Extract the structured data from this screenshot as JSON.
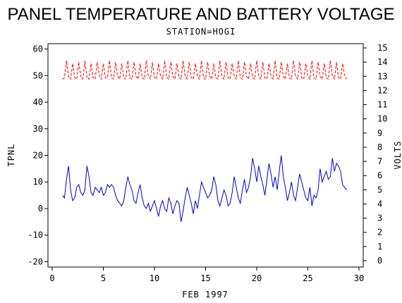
{
  "chart_data": {
    "type": "line",
    "title": "PANEL TEMPERATURE AND BATTERY VOLTAGE",
    "subtitle": "STATION=HOGI",
    "xlabel": "FEB 1997",
    "ylabel_left": "TPNL",
    "ylabel_right": "VOLTS",
    "xlim": [
      0,
      30
    ],
    "ylim_left": [
      -22,
      62
    ],
    "ylim_right": [
      0,
      15
    ],
    "x_ticks": [
      0,
      5,
      10,
      15,
      20,
      25,
      30
    ],
    "y_ticks_left": [
      -20,
      -10,
      0,
      10,
      20,
      30,
      40,
      50,
      60
    ],
    "y_ticks_right": [
      0,
      1,
      2,
      3,
      4,
      5,
      6,
      7,
      8,
      9,
      10,
      11,
      12,
      13,
      14,
      15
    ],
    "grid": false,
    "colors": {
      "temperature": "#0000cc",
      "voltage": "#ff0000",
      "axes": "#000000"
    },
    "series": [
      {
        "axis": "left",
        "style": "solid",
        "x": [
          1.0,
          1.2,
          1.4,
          1.6,
          1.8,
          2.0,
          2.2,
          2.4,
          2.6,
          2.8,
          3.0,
          3.2,
          3.4,
          3.6,
          3.8,
          4.0,
          4.2,
          4.4,
          4.6,
          4.8,
          5.0,
          5.2,
          5.4,
          5.6,
          5.8,
          6.0,
          6.2,
          6.4,
          6.6,
          6.8,
          7.0,
          7.2,
          7.4,
          7.6,
          7.8,
          8.0,
          8.2,
          8.4,
          8.6,
          8.8,
          9.0,
          9.2,
          9.4,
          9.6,
          9.8,
          10.0,
          10.2,
          10.4,
          10.6,
          10.8,
          11.0,
          11.2,
          11.4,
          11.6,
          11.8,
          12.0,
          12.2,
          12.4,
          12.6,
          12.8,
          13.0,
          13.2,
          13.4,
          13.6,
          13.8,
          14.0,
          14.2,
          14.4,
          14.6,
          14.8,
          15.0,
          15.2,
          15.4,
          15.6,
          15.8,
          16.0,
          16.2,
          16.4,
          16.6,
          16.8,
          17.0,
          17.2,
          17.4,
          17.6,
          17.8,
          18.0,
          18.2,
          18.4,
          18.6,
          18.8,
          19.0,
          19.2,
          19.4,
          19.6,
          19.8,
          20.0,
          20.2,
          20.4,
          20.6,
          20.8,
          21.0,
          21.2,
          21.4,
          21.6,
          21.8,
          22.0,
          22.2,
          22.4,
          22.6,
          22.8,
          23.0,
          23.2,
          23.4,
          23.6,
          23.8,
          24.0,
          24.2,
          24.4,
          24.6,
          24.8,
          25.0,
          25.2,
          25.4,
          25.6,
          25.8,
          26.0,
          26.2,
          26.4,
          26.6,
          26.8,
          27.0,
          27.2,
          27.4,
          27.6,
          27.8,
          28.0,
          28.2,
          28.4,
          28.6,
          28.8
        ],
        "y": [
          5,
          4,
          11,
          16,
          7,
          3,
          4,
          8,
          9,
          6,
          5,
          7,
          16,
          12,
          6,
          5,
          8,
          7,
          6,
          8,
          5,
          6,
          9,
          8,
          9,
          8,
          5,
          3,
          2,
          1,
          3,
          8,
          12,
          9,
          7,
          3,
          2,
          6,
          9,
          4,
          1,
          0,
          2,
          -1,
          1,
          3,
          0,
          -3,
          1,
          3,
          0,
          -1,
          4,
          2,
          -2,
          1,
          3,
          2,
          -5,
          -1,
          4,
          8,
          5,
          2,
          -2,
          3,
          0,
          5,
          10,
          8,
          6,
          4,
          5,
          7,
          12,
          9,
          3,
          1,
          4,
          7,
          5,
          1,
          2,
          6,
          12,
          8,
          4,
          2,
          7,
          11,
          6,
          8,
          12,
          19,
          15,
          10,
          16,
          12,
          9,
          5,
          11,
          17,
          13,
          8,
          12,
          7,
          14,
          20,
          12,
          8,
          3,
          6,
          10,
          5,
          3,
          8,
          13,
          10,
          7,
          4,
          3,
          8,
          1,
          5,
          4,
          7,
          15,
          10,
          12,
          14,
          11,
          12,
          19,
          14,
          17,
          16,
          14,
          9,
          8,
          7
        ]
      },
      {
        "axis": "right",
        "style": "dashed",
        "x": [
          1.0,
          1.2,
          1.4,
          1.6,
          1.8,
          2.0,
          2.2,
          2.4,
          2.6,
          2.8,
          3.0,
          3.2,
          3.4,
          3.6,
          3.8,
          4.0,
          4.2,
          4.4,
          4.6,
          4.8,
          5.0,
          5.2,
          5.4,
          5.6,
          5.8,
          6.0,
          6.2,
          6.4,
          6.6,
          6.8,
          7.0,
          7.2,
          7.4,
          7.6,
          7.8,
          8.0,
          8.2,
          8.4,
          8.6,
          8.8,
          9.0,
          9.2,
          9.4,
          9.6,
          9.8,
          10.0,
          10.2,
          10.4,
          10.6,
          10.8,
          11.0,
          11.2,
          11.4,
          11.6,
          11.8,
          12.0,
          12.2,
          12.4,
          12.6,
          12.8,
          13.0,
          13.2,
          13.4,
          13.6,
          13.8,
          14.0,
          14.2,
          14.4,
          14.6,
          14.8,
          15.0,
          15.2,
          15.4,
          15.6,
          15.8,
          16.0,
          16.2,
          16.4,
          16.6,
          16.8,
          17.0,
          17.2,
          17.4,
          17.6,
          17.8,
          18.0,
          18.2,
          18.4,
          18.6,
          18.8,
          19.0,
          19.2,
          19.4,
          19.6,
          19.8,
          20.0,
          20.2,
          20.4,
          20.6,
          20.8,
          21.0,
          21.2,
          21.4,
          21.6,
          21.8,
          22.0,
          22.2,
          22.4,
          22.6,
          22.8,
          23.0,
          23.2,
          23.4,
          23.6,
          23.8,
          24.0,
          24.2,
          24.4,
          24.6,
          24.8,
          25.0,
          25.2,
          25.4,
          25.6,
          25.8,
          26.0,
          26.2,
          26.4,
          26.6,
          26.8,
          27.0,
          27.2,
          27.4,
          27.6,
          27.8,
          28.0,
          28.2,
          28.4,
          28.6,
          28.8
        ],
        "y": [
          12.8,
          12.9,
          14.1,
          13.0,
          12.8,
          13.9,
          12.9,
          12.8,
          14.0,
          13.0,
          12.8,
          14.1,
          12.9,
          12.8,
          13.9,
          12.9,
          12.8,
          14.0,
          13.1,
          12.8,
          13.9,
          12.9,
          12.9,
          14.1,
          12.9,
          12.8,
          14.0,
          13.0,
          12.8,
          13.9,
          12.9,
          12.8,
          14.1,
          12.9,
          12.8,
          14.0,
          13.0,
          12.8,
          13.9,
          12.9,
          12.8,
          14.1,
          13.0,
          12.8,
          14.0,
          12.9,
          12.8,
          13.9,
          13.0,
          12.8,
          14.1,
          12.9,
          12.8,
          14.0,
          13.0,
          12.8,
          13.9,
          12.9,
          12.8,
          14.1,
          13.0,
          12.8,
          14.0,
          12.9,
          12.8,
          13.9,
          13.0,
          12.8,
          14.1,
          12.9,
          12.8,
          14.0,
          13.0,
          12.8,
          13.9,
          12.9,
          12.8,
          14.1,
          13.0,
          12.8,
          14.0,
          12.9,
          12.8,
          13.9,
          13.0,
          12.8,
          14.1,
          12.9,
          12.8,
          14.0,
          13.0,
          12.8,
          13.9,
          12.9,
          12.8,
          14.1,
          13.0,
          12.8,
          14.0,
          12.9,
          12.8,
          13.9,
          13.0,
          12.8,
          14.1,
          12.9,
          12.8,
          14.0,
          13.0,
          12.8,
          13.9,
          12.9,
          12.8,
          14.1,
          13.0,
          12.8,
          14.0,
          12.9,
          12.8,
          13.9,
          13.0,
          12.8,
          14.1,
          12.9,
          12.8,
          14.0,
          13.0,
          12.8,
          13.9,
          12.9,
          12.8,
          14.1,
          13.0,
          12.8,
          14.0,
          12.9,
          12.8,
          13.9,
          13.0,
          12.8
        ]
      }
    ]
  }
}
